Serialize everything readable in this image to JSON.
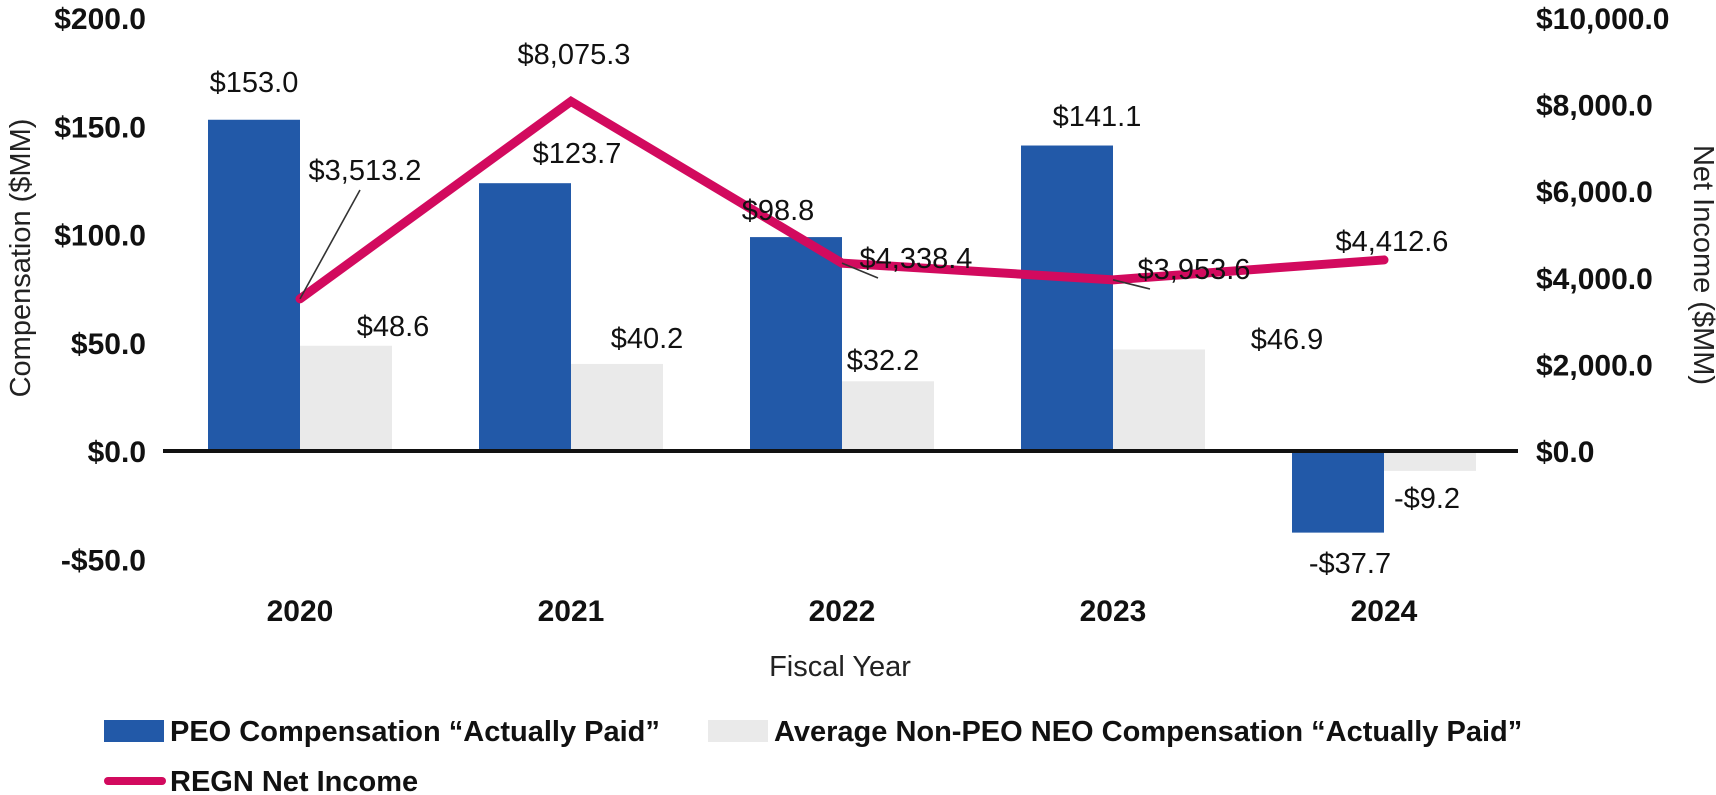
{
  "chart_data": {
    "type": "bar",
    "categories": [
      "2020",
      "2021",
      "2022",
      "2023",
      "2024"
    ],
    "xlabel": "Fiscal Year",
    "ylabel": "Compensation ($MM)",
    "ylabel_right": "Net Income ($MM)",
    "ylim": [
      -50,
      200
    ],
    "ylim_right": [
      0,
      10000
    ],
    "yticks": [
      {
        "value": 200,
        "label": "$200.0"
      },
      {
        "value": 150,
        "label": "$150.0"
      },
      {
        "value": 100,
        "label": "$100.0"
      },
      {
        "value": 50,
        "label": "$50.0"
      },
      {
        "value": 0,
        "label": "$0.0"
      },
      {
        "value": -50,
        "label": "-$50.0"
      }
    ],
    "yticks_right": [
      {
        "value": 10000,
        "label": "$10,000.0"
      },
      {
        "value": 8000,
        "label": "$8,000.0"
      },
      {
        "value": 6000,
        "label": "$6,000.0"
      },
      {
        "value": 4000,
        "label": "$4,000.0"
      },
      {
        "value": 2000,
        "label": "$2,000.0"
      },
      {
        "value": 0,
        "label": "$0.0"
      }
    ],
    "series": [
      {
        "name": "PEO Compensation “Actually Paid”",
        "kind": "bar",
        "axis": "left",
        "color": "#2259A8",
        "values": [
          153.0,
          123.7,
          98.8,
          141.1,
          -37.7
        ],
        "labels": [
          "$153.0",
          "$123.7",
          "$98.8",
          "$141.1",
          "-$37.7"
        ]
      },
      {
        "name": "Average Non-PEO NEO Compensation “Actually Paid”",
        "kind": "bar",
        "axis": "left",
        "color": "#EAEAEA",
        "values": [
          48.6,
          40.2,
          32.2,
          46.9,
          -9.2
        ],
        "labels": [
          "$48.6",
          "$40.2",
          "$32.2",
          "$46.9",
          "-$9.2"
        ]
      },
      {
        "name": "REGN Net Income",
        "kind": "line",
        "axis": "right",
        "color": "#D20A5E",
        "values": [
          3513.2,
          8075.3,
          4338.4,
          3953.6,
          4412.6
        ],
        "labels": [
          "$3,513.2",
          "$8,075.3",
          "$4,338.4",
          "$3,953.6",
          "$4,412.6"
        ]
      }
    ],
    "legend": "bottom"
  }
}
